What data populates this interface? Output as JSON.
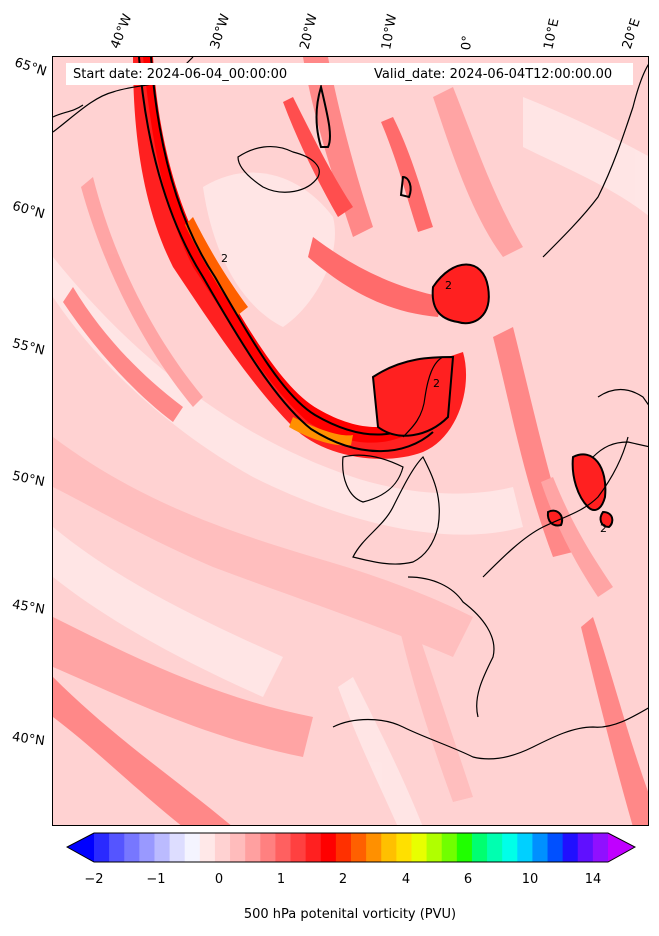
{
  "header": {
    "start_date": "Start date: 2024-06-04_00:00:00",
    "valid_date": "Valid_date: 2024-06-04T12:00:00.00"
  },
  "longitude_labels": [
    "40°W",
    "30°W",
    "20°W",
    "10°W",
    "0°",
    "10°E",
    "20°E"
  ],
  "latitude_labels": [
    "65°N",
    "60°N",
    "55°N",
    "50°N",
    "45°N",
    "40°N"
  ],
  "contour_label": "2",
  "colorbar": {
    "label": "500 hPa potenital vorticity (PVU)",
    "ticks": [
      "−2",
      "−1",
      "0",
      "1",
      "2",
      "4",
      "6",
      "10",
      "14"
    ],
    "colors": [
      "#0000ff",
      "#2a2aff",
      "#5555ff",
      "#7777ff",
      "#9999ff",
      "#bbbbff",
      "#ddddff",
      "#f4f4ff",
      "#ffe8e8",
      "#ffd2d2",
      "#ffbcbc",
      "#ffa0a0",
      "#ff8080",
      "#ff6060",
      "#ff4040",
      "#ff2020",
      "#ff0000",
      "#ff3000",
      "#ff6000",
      "#ff9000",
      "#ffc000",
      "#ffe000",
      "#e8ff00",
      "#b0ff00",
      "#70ff00",
      "#20ff00",
      "#00ff70",
      "#00ffb0",
      "#00ffe8",
      "#00d0ff",
      "#0090ff",
      "#0050ff",
      "#2010ff",
      "#6010ff",
      "#9010ff",
      "#c000ff"
    ]
  },
  "colors": {
    "background_pv": "#ffd2d2",
    "jet_core": "#ff0000",
    "jet_max": "#ff6000",
    "coastline": "#000000"
  }
}
